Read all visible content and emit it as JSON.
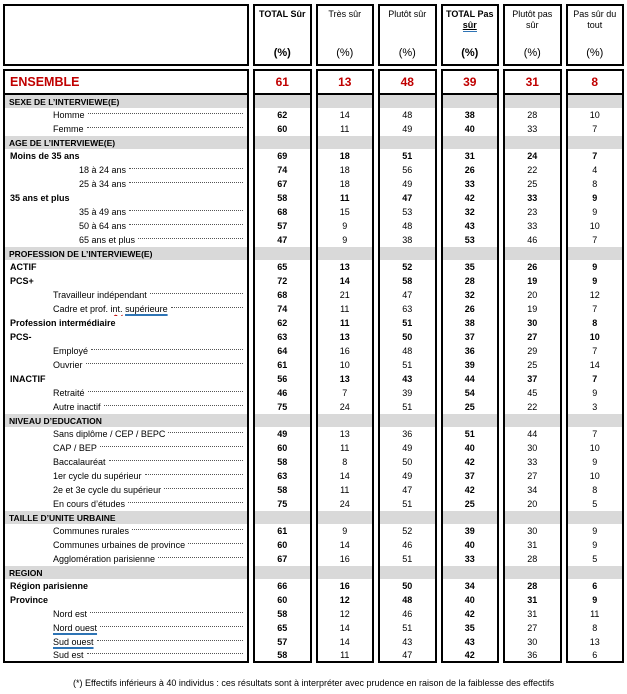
{
  "table": {
    "columns": [
      {
        "label": "TOTAL Sûr",
        "unit": "(%)",
        "bold": true
      },
      {
        "label": "Très sûr",
        "unit": "(%)",
        "bold": false
      },
      {
        "label": "Plutôt sûr",
        "unit": "(%)",
        "bold": false
      },
      {
        "label": "TOTAL Pas",
        "label_line2": "sûr",
        "line2_underline": true,
        "unit": "(%)",
        "bold": true
      },
      {
        "label": "Plutôt pas sûr",
        "unit": "(%)",
        "bold": false
      },
      {
        "label": "Pas sûr du tout",
        "unit": "(%)",
        "bold": false
      }
    ],
    "ensemble": {
      "label": "ENSEMBLE",
      "values": [
        61,
        13,
        48,
        39,
        31,
        8
      ]
    },
    "rows": [
      {
        "kind": "section",
        "label": "SEXE DE L’INTERVIEWE(E)"
      },
      {
        "kind": "data",
        "label": "Homme",
        "indent": 1,
        "leader": true,
        "values": [
          62,
          14,
          48,
          38,
          28,
          10
        ]
      },
      {
        "kind": "data",
        "label": "Femme",
        "indent": 1,
        "leader": true,
        "values": [
          60,
          11,
          49,
          40,
          33,
          7
        ]
      },
      {
        "kind": "section",
        "label": "AGE DE L’INTERVIEWE(E)"
      },
      {
        "kind": "data",
        "label": "Moins de 35 ans",
        "bold": true,
        "indent": 0,
        "values": [
          69,
          18,
          51,
          31,
          24,
          7
        ]
      },
      {
        "kind": "data",
        "label": "18 à 24 ans",
        "indent": 2,
        "leader": true,
        "values": [
          74,
          18,
          56,
          26,
          22,
          4
        ]
      },
      {
        "kind": "data",
        "label": "25 à 34 ans",
        "indent": 2,
        "leader": true,
        "values": [
          67,
          18,
          49,
          33,
          25,
          8
        ]
      },
      {
        "kind": "data",
        "label": "35 ans et plus",
        "bold": true,
        "indent": 0,
        "values": [
          58,
          11,
          47,
          42,
          33,
          9
        ]
      },
      {
        "kind": "data",
        "label": "35 à 49 ans",
        "indent": 2,
        "leader": true,
        "values": [
          68,
          15,
          53,
          32,
          23,
          9
        ]
      },
      {
        "kind": "data",
        "label": "50 à 64 ans",
        "indent": 2,
        "leader": true,
        "values": [
          57,
          9,
          48,
          43,
          33,
          10
        ]
      },
      {
        "kind": "data",
        "label": "65 ans et plus",
        "indent": 2,
        "leader": true,
        "values": [
          47,
          9,
          38,
          53,
          46,
          7
        ]
      },
      {
        "kind": "section",
        "label": "PROFESSION DE L’INTERVIEWE(E)"
      },
      {
        "kind": "data",
        "label": "ACTIF",
        "bold": true,
        "indent": 0,
        "values": [
          65,
          13,
          52,
          35,
          26,
          9
        ]
      },
      {
        "kind": "data",
        "label": "PCS+",
        "bold": true,
        "indent": 0,
        "values": [
          72,
          14,
          58,
          28,
          19,
          9
        ]
      },
      {
        "kind": "data",
        "label": "Travailleur indépendant",
        "indent": 1,
        "leader": true,
        "values": [
          68,
          21,
          47,
          32,
          20,
          12
        ]
      },
      {
        "kind": "data",
        "label": "Cadre et prof. int. supérieure",
        "indent": 1,
        "leader": true,
        "values": [
          74,
          11,
          63,
          26,
          19,
          7
        ],
        "parts": [
          {
            "text": "Cadre et prof. "
          },
          {
            "text": "int.",
            "mark": "spell"
          },
          {
            "text": " "
          },
          {
            "text": "supérieure",
            "mark": "grammar"
          }
        ]
      },
      {
        "kind": "data",
        "label": "Profession intermédiaire",
        "bold": true,
        "indent": 0,
        "values": [
          62,
          11,
          51,
          38,
          30,
          8
        ]
      },
      {
        "kind": "data",
        "label": "PCS-",
        "bold": true,
        "indent": 0,
        "values": [
          63,
          13,
          50,
          37,
          27,
          10
        ]
      },
      {
        "kind": "data",
        "label": "Employé",
        "indent": 1,
        "leader": true,
        "values": [
          64,
          16,
          48,
          36,
          29,
          7
        ]
      },
      {
        "kind": "data",
        "label": "Ouvrier",
        "indent": 1,
        "leader": true,
        "values": [
          61,
          10,
          51,
          39,
          25,
          14
        ]
      },
      {
        "kind": "data",
        "label": "INACTIF",
        "bold": true,
        "indent": 0,
        "values": [
          56,
          13,
          43,
          44,
          37,
          7
        ]
      },
      {
        "kind": "data",
        "label": "Retraité",
        "indent": 1,
        "leader": true,
        "values": [
          46,
          7,
          39,
          54,
          45,
          9
        ]
      },
      {
        "kind": "data",
        "label": "Autre inactif",
        "indent": 1,
        "leader": true,
        "values": [
          75,
          24,
          51,
          25,
          22,
          3
        ]
      },
      {
        "kind": "section",
        "label": "NIVEAU D’EDUCATION"
      },
      {
        "kind": "data",
        "label": "Sans diplôme / CEP / BEPC",
        "indent": 1,
        "leader": true,
        "values": [
          49,
          13,
          36,
          51,
          44,
          7
        ]
      },
      {
        "kind": "data",
        "label": "CAP / BEP",
        "indent": 1,
        "leader": true,
        "values": [
          60,
          11,
          49,
          40,
          30,
          10
        ]
      },
      {
        "kind": "data",
        "label": "Baccalauréat",
        "indent": 1,
        "leader": true,
        "values": [
          58,
          8,
          50,
          42,
          33,
          9
        ]
      },
      {
        "kind": "data",
        "label": "1er cycle du supérieur",
        "indent": 1,
        "leader": true,
        "values": [
          63,
          14,
          49,
          37,
          27,
          10
        ]
      },
      {
        "kind": "data",
        "label": "2e et 3e cycle du supérieur",
        "indent": 1,
        "leader": true,
        "values": [
          58,
          11,
          47,
          42,
          34,
          8
        ]
      },
      {
        "kind": "data",
        "label": "En cours d’études",
        "indent": 1,
        "leader": true,
        "values": [
          75,
          24,
          51,
          25,
          20,
          5
        ]
      },
      {
        "kind": "section",
        "label": "TAILLE D’UNITE URBAINE"
      },
      {
        "kind": "data",
        "label": "Communes rurales",
        "indent": 1,
        "leader": true,
        "values": [
          61,
          9,
          52,
          39,
          30,
          9
        ]
      },
      {
        "kind": "data",
        "label": "Communes urbaines de province",
        "indent": 1,
        "leader": true,
        "values": [
          60,
          14,
          46,
          40,
          31,
          9
        ]
      },
      {
        "kind": "data",
        "label": "Agglomération parisienne",
        "indent": 1,
        "leader": true,
        "values": [
          67,
          16,
          51,
          33,
          28,
          5
        ]
      },
      {
        "kind": "section",
        "label": "REGION"
      },
      {
        "kind": "data",
        "label": "Région parisienne",
        "bold": true,
        "indent": 0,
        "values": [
          66,
          16,
          50,
          34,
          28,
          6
        ]
      },
      {
        "kind": "data",
        "label": "Province",
        "bold": true,
        "indent": 0,
        "values": [
          60,
          12,
          48,
          40,
          31,
          9
        ]
      },
      {
        "kind": "data",
        "label": "Nord est",
        "indent": 1,
        "leader": true,
        "values": [
          58,
          12,
          46,
          42,
          31,
          11
        ]
      },
      {
        "kind": "data",
        "label": "Nord ouest",
        "indent": 1,
        "leader": true,
        "values": [
          65,
          14,
          51,
          35,
          27,
          8
        ],
        "parts": [
          {
            "text": "Nord ouest",
            "mark": "grammar"
          }
        ]
      },
      {
        "kind": "data",
        "label": "Sud ouest",
        "indent": 1,
        "leader": true,
        "values": [
          57,
          14,
          43,
          43,
          30,
          13
        ],
        "parts": [
          {
            "text": "Sud ouest",
            "mark": "grammar"
          }
        ]
      },
      {
        "kind": "data",
        "label": "Sud est",
        "indent": 1,
        "leader": true,
        "values": [
          58,
          11,
          47,
          42,
          36,
          6
        ]
      }
    ],
    "footnote": "(*) Effectifs inférieurs à 40 individus : ces résultats sont à interpréter avec prudence en raison de la faiblesse des effectifs",
    "colors": {
      "accent_red": "#C00000",
      "section_bg": "#D9D9D9",
      "grammar_blue": "#2E74B5",
      "spell_red": "#C00000"
    }
  }
}
